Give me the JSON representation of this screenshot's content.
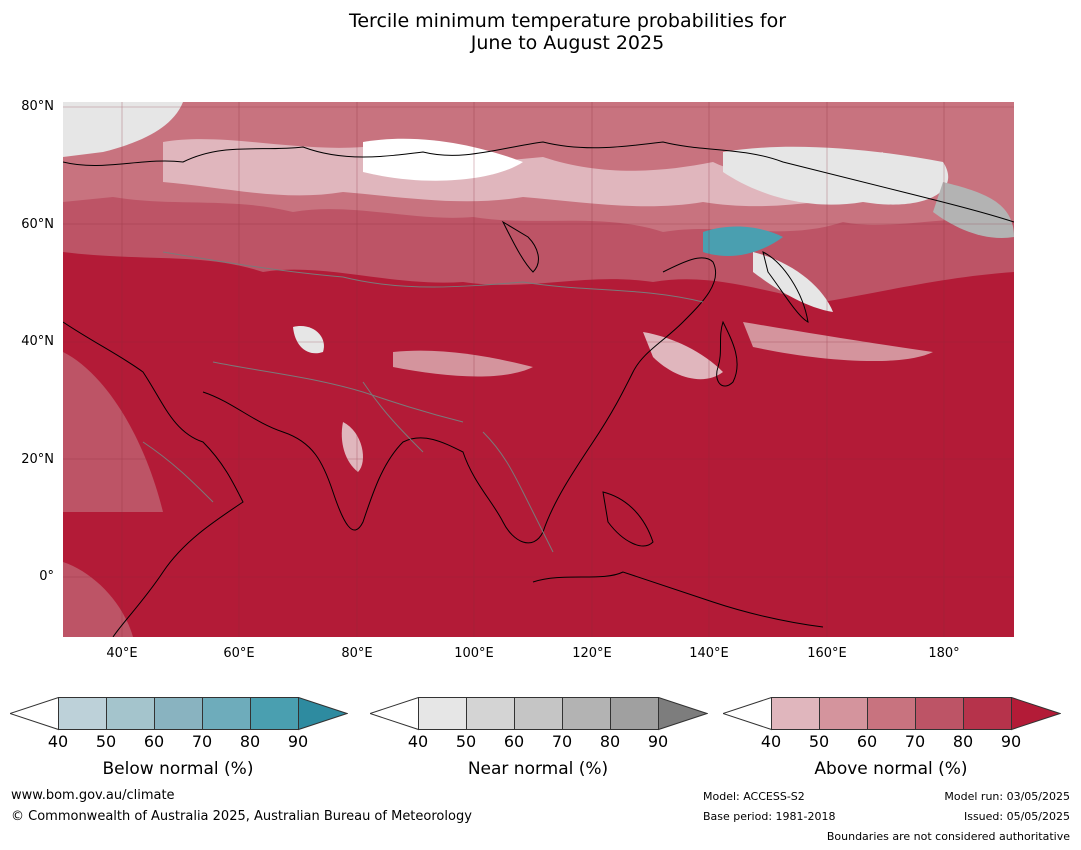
{
  "title_line1": "Tercile minimum temperature probabilities for",
  "title_line2": "June to August 2025",
  "map": {
    "lat_labels": [
      "80°N",
      "60°N",
      "40°N",
      "20°N",
      "0°"
    ],
    "lon_labels": [
      "40°E",
      "60°E",
      "80°E",
      "100°E",
      "120°E",
      "140°E",
      "160°E",
      "180°"
    ]
  },
  "legends": [
    {
      "title": "Below normal (%)",
      "ticks": [
        "40",
        "50",
        "60",
        "70",
        "80",
        "90"
      ],
      "colors": [
        "#ffffff",
        "#bdd1d9",
        "#a4c4cc",
        "#89b3c0",
        "#6eacbb",
        "#4a9fb0",
        "#2e8ba0"
      ]
    },
    {
      "title": "Near normal (%)",
      "ticks": [
        "40",
        "50",
        "60",
        "70",
        "80",
        "90"
      ],
      "colors": [
        "#ffffff",
        "#e6e6e6",
        "#d4d4d4",
        "#c5c5c5",
        "#b3b3b3",
        "#a0a0a0",
        "#7d7d7d"
      ]
    },
    {
      "title": "Above normal (%)",
      "ticks": [
        "40",
        "50",
        "60",
        "70",
        "80",
        "90"
      ],
      "colors": [
        "#ffffff",
        "#e0b6bd",
        "#d4949d",
        "#c8737f",
        "#bd5466",
        "#b6334b",
        "#b31b37"
      ]
    }
  ],
  "footer": {
    "website": "www.bom.gov.au/climate",
    "copyright": "© Commonwealth of Australia 2025, Australian Bureau of Meteorology",
    "model": "Model: ACCESS-S2",
    "base_period": "Base period: 1981-2018",
    "model_run": "Model run: 03/05/2025",
    "issued": "Issued: 05/05/2025",
    "disclaimer": "Boundaries are not considered authoritative"
  }
}
